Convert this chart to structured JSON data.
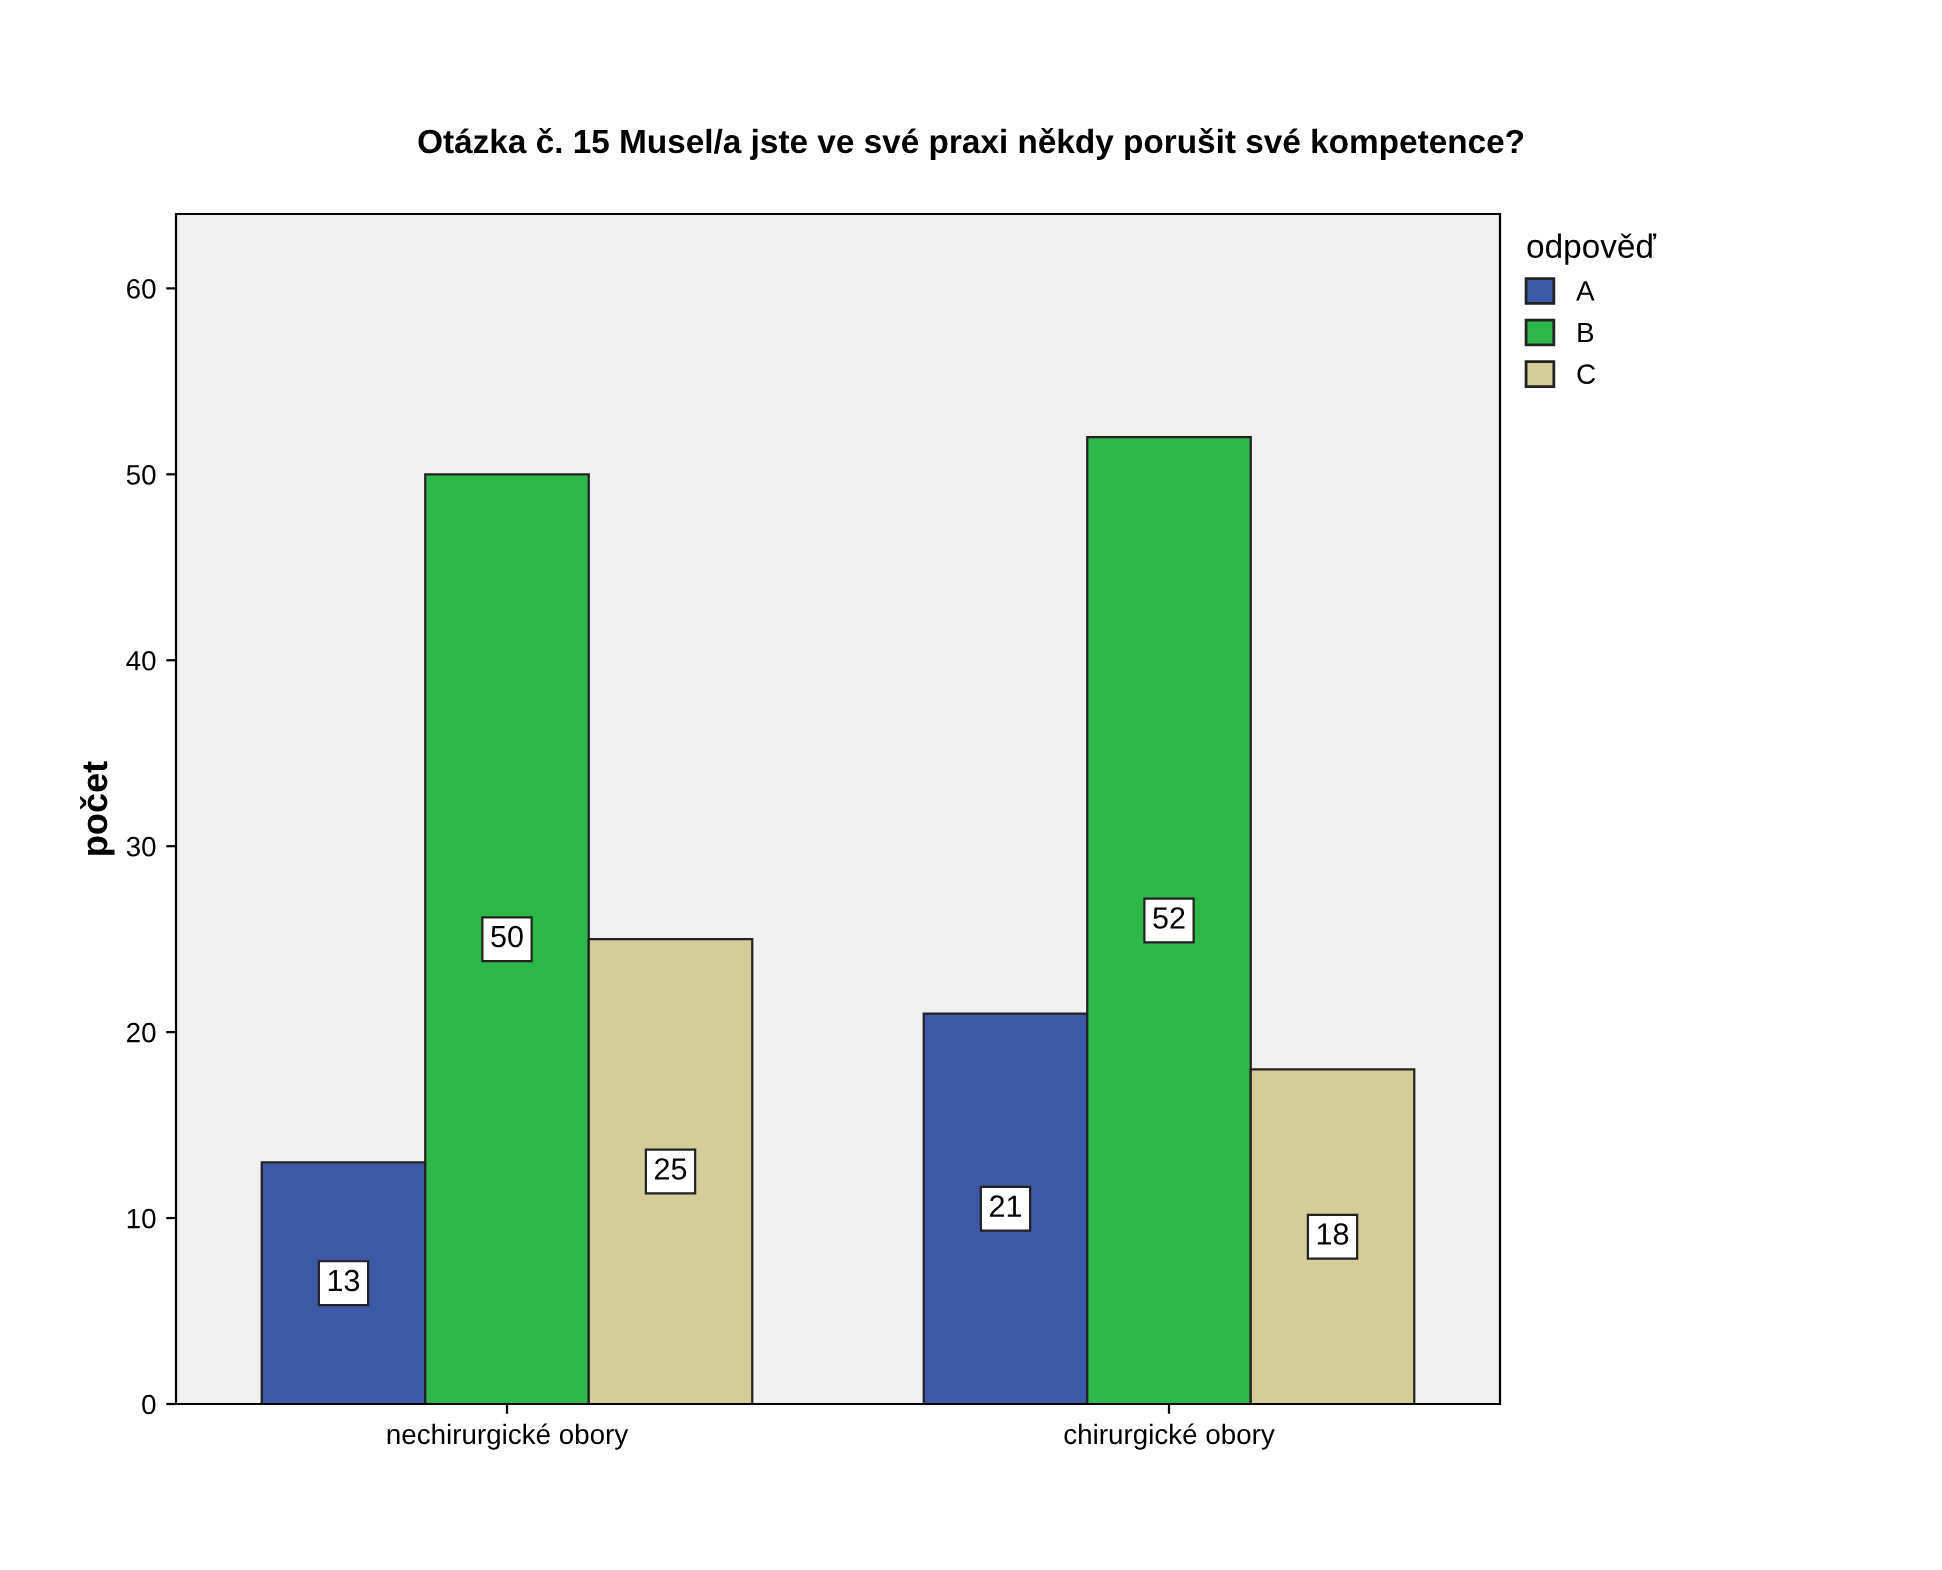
{
  "chart_data": {
    "type": "bar",
    "title": "Otázka č. 15 Musel/a jste ve své praxi někdy porušit své kompetence?",
    "ylabel": "počet",
    "legend_title": "odpověď",
    "categories": [
      "nechirurgické obory",
      "chirurgické obory"
    ],
    "series": [
      {
        "name": "A",
        "color": "#3e58a8",
        "values": [
          13,
          21
        ]
      },
      {
        "name": "B",
        "color": "#2eb84a",
        "values": [
          50,
          52
        ]
      },
      {
        "name": "C",
        "color": "#d4cc99",
        "values": [
          25,
          18
        ]
      }
    ],
    "ylim": [
      0,
      64
    ],
    "yticks": [
      0,
      10,
      20,
      30,
      40,
      50,
      60
    ],
    "data_labels": true,
    "grid": false,
    "legend": "top right"
  }
}
